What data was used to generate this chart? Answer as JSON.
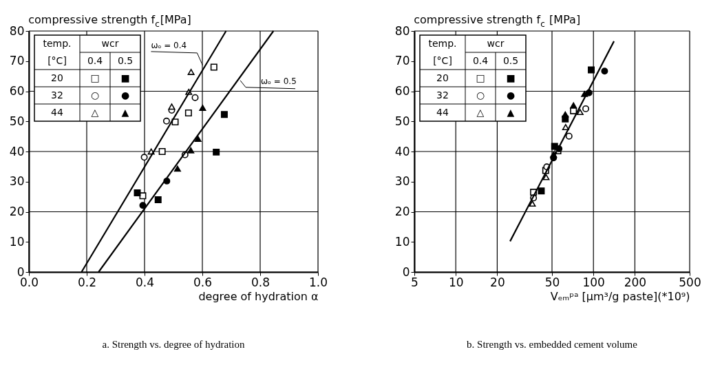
{
  "chart_data": [
    {
      "type": "scatter",
      "title": "a. Strength vs. degree of hydration",
      "xlabel": "degree of hydration α",
      "ylabel": "compressive strength f$_{c}$[MPa]",
      "xlim": [
        0,
        1
      ],
      "ylim": [
        0,
        80
      ],
      "xticks": [
        {
          "value": 0,
          "label": "0.0"
        },
        0.2,
        0.4,
        0.6,
        0.8,
        {
          "value": 1,
          "label": "1.0"
        }
      ],
      "yticks": [
        0,
        10,
        20,
        30,
        40,
        50,
        60,
        70,
        80
      ],
      "grid": true,
      "series": [
        {
          "marker": "square",
          "color": "#ffffff",
          "x": [
            0.64,
            0.552,
            0.506,
            0.461,
            0.394
          ],
          "values": [
            68.0,
            52.8,
            49.8,
            40.0,
            25.3
          ]
        },
        {
          "marker": "square",
          "color": "#000000",
          "x": [
            0.676,
            0.648,
            0.375,
            0.447
          ],
          "values": [
            52.3,
            39.8,
            26.3,
            24.0
          ]
        },
        {
          "marker": "circle",
          "color": "#ffffff",
          "x": [
            0.575,
            0.476,
            0.399,
            0.54,
            0.494
          ],
          "values": [
            57.9,
            50.1,
            38.1,
            38.9,
            53.7
          ]
        },
        {
          "marker": "circle",
          "color": "#000000",
          "x": [
            0.477,
            0.394
          ],
          "values": [
            30.2,
            22.1
          ]
        },
        {
          "marker": "triangle",
          "color": "#ffffff",
          "x": [
            0.561,
            0.553,
            0.494,
            0.423
          ],
          "values": [
            66.4,
            59.8,
            54.9,
            40.0
          ]
        },
        {
          "marker": "triangle",
          "color": "#000000",
          "x": [
            0.601,
            0.585,
            0.56,
            0.514
          ],
          "values": [
            54.5,
            44.2,
            40.4,
            34.3
          ]
        },
        {
          "type": "line",
          "marker": "none",
          "color": "#000000",
          "x": [
            0.182,
            0.682
          ],
          "values": [
            0,
            80
          ]
        },
        {
          "type": "line",
          "marker": "none",
          "color": "#000000",
          "x": [
            0.241,
            0.846
          ],
          "values": [
            0,
            80
          ]
        }
      ],
      "annotations": [
        "temp.",
        "wcr",
        "[°C]",
        "0.4",
        "0.5",
        "20",
        "□",
        "■",
        "32",
        "○",
        "●",
        "44",
        "△",
        "▲",
        {
          "text": "ωₒ = 0.4",
          "x": 0.601,
          "y": 68.6
        },
        {
          "text": "ωₒ = 0.5",
          "x": 0.731,
          "y": 63.6
        }
      ]
    },
    {
      "type": "scatter",
      "title": "b. Strength vs. embedded cement volume",
      "xlabel": "Vₑₘᵖᵃ  [μm³/g paste](*10⁹)",
      "ylabel": "compressive strength f$_{c}$ [MPa]",
      "log": "x",
      "xlim": [
        5,
        500
      ],
      "ylim": [
        0,
        80
      ],
      "xticks": [
        5,
        10,
        20,
        50,
        100,
        200,
        500
      ],
      "yticks": [
        0,
        10,
        20,
        30,
        40,
        50,
        60,
        70,
        80
      ],
      "grid": true,
      "series": [
        {
          "marker": "square",
          "color": "#ffffff",
          "x": [
            36.7,
            45,
            71.6,
            55.2
          ],
          "values": [
            26.5,
            33.7,
            53.5,
            40.2
          ]
        },
        {
          "marker": "square",
          "color": "#000000",
          "x": [
            41.8,
            96.4,
            52.2,
            62.4
          ],
          "values": [
            26.9,
            67.1,
            41.7,
            50.8
          ]
        },
        {
          "marker": "circle",
          "color": "#ffffff",
          "x": [
            36.7,
            45.8,
            66.5,
            87.9
          ],
          "values": [
            24.6,
            34.9,
            45.1,
            54.2
          ]
        },
        {
          "marker": "circle",
          "color": "#000000",
          "x": [
            120.5,
            51.3,
            56.2,
            92.9
          ],
          "values": [
            66.7,
            37.9,
            40.9,
            59.5
          ]
        },
        {
          "marker": "triangle",
          "color": "#ffffff",
          "x": [
            36.0,
            45.3,
            62.8,
            80.0
          ],
          "values": [
            22.7,
            31.5,
            48.1,
            53.1
          ]
        },
        {
          "marker": "triangle",
          "color": "#000000",
          "x": [
            62.4,
            71.6,
            86.1,
            51.3
          ],
          "values": [
            52.3,
            55.3,
            59.1,
            39.0
          ]
        },
        {
          "type": "line",
          "marker": "none",
          "color": "#000000",
          "x": [
            24.8,
            141
          ],
          "values": [
            10.2,
            76.6
          ]
        }
      ],
      "annotations": [
        "temp.",
        "wcr",
        "[°C]",
        "0.4",
        "0.5",
        "20",
        "□",
        "■",
        "32",
        "○",
        "●",
        "44",
        "△",
        "▲"
      ]
    }
  ]
}
